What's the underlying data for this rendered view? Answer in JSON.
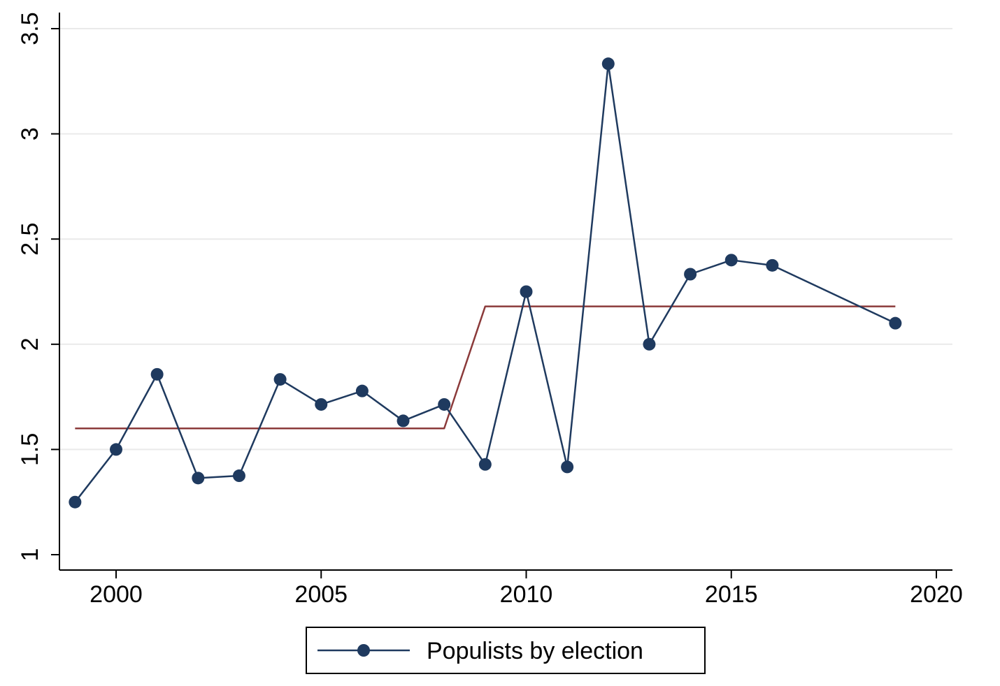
{
  "chart_data": {
    "type": "line",
    "title": "",
    "xlabel": "",
    "ylabel": "",
    "xlim": [
      1999,
      2020
    ],
    "ylim": [
      1,
      3.5
    ],
    "x_ticks": [
      2000,
      2005,
      2010,
      2015,
      2020
    ],
    "x_tick_labels": [
      "2000",
      "2005",
      "2010",
      "2015",
      "2020"
    ],
    "y_ticks": [
      1,
      1.5,
      2,
      2.5,
      3,
      3.5
    ],
    "y_tick_labels": [
      "1",
      "1.5",
      "2",
      "2.5",
      "3",
      "3.5"
    ],
    "grid": true,
    "legend_position": "bottom",
    "series": [
      {
        "name": "Populists by election",
        "color": "#1f3a5f",
        "marker": "circle",
        "x": [
          1999,
          2000,
          2001,
          2002,
          2003,
          2004,
          2005,
          2006,
          2007,
          2008,
          2009,
          2010,
          2011,
          2012,
          2013,
          2014,
          2015,
          2016,
          2019
        ],
        "y": [
          1.25,
          1.5,
          1.857,
          1.364,
          1.375,
          1.833,
          1.714,
          1.778,
          1.636,
          1.714,
          1.429,
          2.25,
          1.417,
          3.333,
          2.0,
          2.333,
          2.4,
          2.375,
          2.1
        ]
      },
      {
        "color": "#8b3a3a",
        "marker": "none",
        "x": [
          1999,
          2008,
          2009,
          2019
        ],
        "y": [
          1.6,
          1.6,
          2.18,
          2.18
        ]
      }
    ]
  }
}
